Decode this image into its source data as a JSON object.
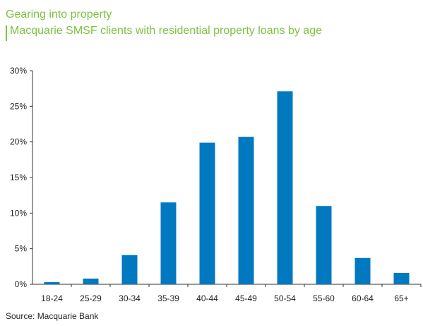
{
  "chart_data": {
    "type": "bar",
    "title": "Gearing into property",
    "subtitle": "Macquarie SMSF clients with residential property loans by age",
    "categories": [
      "18-24",
      "25-29",
      "30-34",
      "35-39",
      "40-44",
      "45-49",
      "50-54",
      "55-60",
      "60-64",
      "65+"
    ],
    "values": [
      0.3,
      0.8,
      4.1,
      11.5,
      19.9,
      20.7,
      27.1,
      11.0,
      3.7,
      1.6
    ],
    "yticks": [
      "0%",
      "5%",
      "10%",
      "15%",
      "20%",
      "25%",
      "30%"
    ],
    "ylim": [
      0,
      30
    ],
    "xlabel": "",
    "ylabel": "",
    "grid": false,
    "bar_color": "#0079c1",
    "title_color": "#7cc242",
    "source": "Source: Macquarie Bank"
  }
}
